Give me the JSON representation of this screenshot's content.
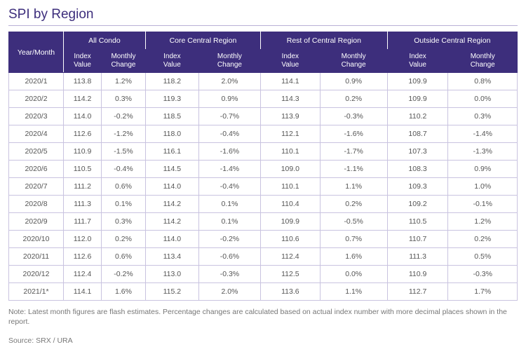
{
  "colors": {
    "title": "#3d2e7c",
    "title_border": "#b9b0d6",
    "header_bg": "#3d2e7c",
    "header_fg": "#ffffff",
    "cell_border": "#c9c3e0",
    "cell_text": "#555555",
    "note_text": "#777777"
  },
  "title": "SPI by Region",
  "columns": {
    "year_month": "Year/Month",
    "groups": [
      "All Condo",
      "Core Central Region",
      "Rest of Central Region",
      "Outside Central Region"
    ],
    "sub": {
      "index": "Index\nValue",
      "change": "Monthly\nChange"
    }
  },
  "rows": [
    {
      "ym": "2020/1",
      "v": [
        "113.8",
        "1.2%",
        "118.2",
        "2.0%",
        "114.1",
        "0.9%",
        "109.9",
        "0.8%"
      ]
    },
    {
      "ym": "2020/2",
      "v": [
        "114.2",
        "0.3%",
        "119.3",
        "0.9%",
        "114.3",
        "0.2%",
        "109.9",
        "0.0%"
      ]
    },
    {
      "ym": "2020/3",
      "v": [
        "114.0",
        "-0.2%",
        "118.5",
        "-0.7%",
        "113.9",
        "-0.3%",
        "110.2",
        "0.3%"
      ]
    },
    {
      "ym": "2020/4",
      "v": [
        "112.6",
        "-1.2%",
        "118.0",
        "-0.4%",
        "112.1",
        "-1.6%",
        "108.7",
        "-1.4%"
      ]
    },
    {
      "ym": "2020/5",
      "v": [
        "110.9",
        "-1.5%",
        "116.1",
        "-1.6%",
        "110.1",
        "-1.7%",
        "107.3",
        "-1.3%"
      ]
    },
    {
      "ym": "2020/6",
      "v": [
        "110.5",
        "-0.4%",
        "114.5",
        "-1.4%",
        "109.0",
        "-1.1%",
        "108.3",
        "0.9%"
      ]
    },
    {
      "ym": "2020/7",
      "v": [
        "111.2",
        "0.6%",
        "114.0",
        "-0.4%",
        "110.1",
        "1.1%",
        "109.3",
        "1.0%"
      ]
    },
    {
      "ym": "2020/8",
      "v": [
        "111.3",
        "0.1%",
        "114.2",
        "0.1%",
        "110.4",
        "0.2%",
        "109.2",
        "-0.1%"
      ]
    },
    {
      "ym": "2020/9",
      "v": [
        "111.7",
        "0.3%",
        "114.2",
        "0.1%",
        "109.9",
        "-0.5%",
        "110.5",
        "1.2%"
      ]
    },
    {
      "ym": "2020/10",
      "v": [
        "112.0",
        "0.2%",
        "114.0",
        "-0.2%",
        "110.6",
        "0.7%",
        "110.7",
        "0.2%"
      ]
    },
    {
      "ym": "2020/11",
      "v": [
        "112.6",
        "0.6%",
        "113.4",
        "-0.6%",
        "112.4",
        "1.6%",
        "111.3",
        "0.5%"
      ]
    },
    {
      "ym": "2020/12",
      "v": [
        "112.4",
        "-0.2%",
        "113.0",
        "-0.3%",
        "112.5",
        "0.0%",
        "110.9",
        "-0.3%"
      ]
    },
    {
      "ym": "2021/1*",
      "v": [
        "114.1",
        "1.6%",
        "115.2",
        "2.0%",
        "113.6",
        "1.1%",
        "112.7",
        "1.7%"
      ]
    }
  ],
  "note": "Note: Latest month figures are flash estimates. Percentage changes are calculated based on actual index number with more decimal places shown in the report.",
  "source": "Source: SRX / URA"
}
